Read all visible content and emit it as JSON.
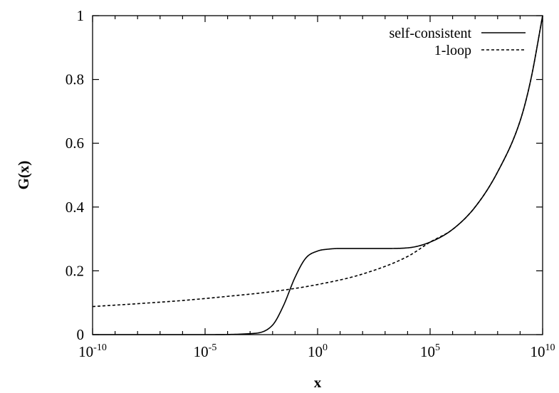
{
  "chart_data": {
    "type": "line",
    "title": "",
    "xlabel": "x",
    "ylabel": "G(x)",
    "xscale": "log",
    "xlim": [
      1e-10,
      10000000000.0
    ],
    "ylim": [
      0,
      1
    ],
    "grid": false,
    "legend_position": "top-right",
    "x_ticks": [
      {
        "value": 1e-10,
        "base": "10",
        "exp": "-10"
      },
      {
        "value": 1e-05,
        "base": "10",
        "exp": "-5"
      },
      {
        "value": 1,
        "base": "10",
        "exp": "0"
      },
      {
        "value": 100000.0,
        "base": "10",
        "exp": "5"
      },
      {
        "value": 10000000000.0,
        "base": "10",
        "exp": "10"
      }
    ],
    "y_ticks": [
      {
        "value": 0,
        "label": "0"
      },
      {
        "value": 0.2,
        "label": "0.2"
      },
      {
        "value": 0.4,
        "label": "0.4"
      },
      {
        "value": 0.6,
        "label": "0.6"
      },
      {
        "value": 0.8,
        "label": "0.8"
      },
      {
        "value": 1,
        "label": "1"
      }
    ],
    "series": [
      {
        "name": "self-consistent",
        "style": "solid",
        "x": [
          1e-10,
          1e-05,
          0.001,
          0.01,
          0.03,
          0.1,
          0.3,
          1,
          3,
          10,
          100,
          1000,
          10000,
          100000,
          1000000.0,
          10000000.0,
          100000000.0,
          1000000000.0,
          3000000000.0,
          10000000000.0
        ],
        "y": [
          0,
          0,
          0.003,
          0.03,
          0.09,
          0.18,
          0.24,
          0.262,
          0.268,
          0.27,
          0.27,
          0.27,
          0.272,
          0.29,
          0.33,
          0.4,
          0.51,
          0.67,
          0.8,
          1.0
        ]
      },
      {
        "name": "1-loop",
        "style": "dashed",
        "x": [
          1e-10,
          1e-08,
          1e-06,
          0.0001,
          0.01,
          1,
          100,
          10000,
          100000,
          1000000.0,
          10000000.0,
          100000000.0,
          1000000000.0,
          3000000000.0,
          10000000000.0
        ],
        "y": [
          0.088,
          0.097,
          0.107,
          0.12,
          0.135,
          0.157,
          0.19,
          0.245,
          0.29,
          0.33,
          0.4,
          0.51,
          0.67,
          0.8,
          1.0
        ]
      }
    ]
  }
}
